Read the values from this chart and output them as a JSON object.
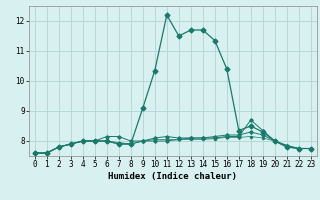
{
  "x": [
    0,
    1,
    2,
    3,
    4,
    5,
    6,
    7,
    8,
    9,
    10,
    11,
    12,
    13,
    14,
    15,
    16,
    17,
    18,
    19,
    20,
    21,
    22,
    23
  ],
  "line1": [
    7.6,
    7.6,
    7.8,
    7.9,
    8.0,
    8.0,
    8.0,
    7.9,
    7.9,
    9.1,
    10.35,
    12.2,
    11.5,
    11.7,
    11.7,
    11.35,
    10.4,
    8.35,
    8.5,
    8.3,
    8.0,
    7.8,
    7.75,
    7.75
  ],
  "line2": [
    7.6,
    7.6,
    7.8,
    7.9,
    8.0,
    8.0,
    8.0,
    7.9,
    7.9,
    8.0,
    8.1,
    8.15,
    8.1,
    8.1,
    8.1,
    8.15,
    8.2,
    8.2,
    8.3,
    8.2,
    8.0,
    7.85,
    7.75,
    7.75
  ],
  "line3": [
    7.6,
    7.6,
    7.8,
    7.9,
    8.0,
    8.0,
    8.15,
    8.15,
    8.0,
    8.0,
    8.0,
    8.0,
    8.05,
    8.1,
    8.1,
    8.1,
    8.15,
    8.15,
    8.7,
    8.35,
    8.0,
    7.85,
    7.75,
    7.75
  ],
  "line4": [
    7.6,
    7.6,
    7.8,
    7.9,
    8.0,
    8.0,
    8.0,
    7.95,
    7.9,
    8.0,
    8.05,
    8.05,
    8.05,
    8.05,
    8.05,
    8.08,
    8.12,
    8.12,
    8.15,
    8.1,
    8.0,
    7.8,
    7.75,
    7.75
  ],
  "line_color": "#1a7a6a",
  "bg_color": "#d8f0f0",
  "grid_color": "#b8d8d8",
  "xlabel": "Humidex (Indice chaleur)",
  "ylim": [
    7.5,
    12.5
  ],
  "xlim": [
    -0.5,
    23.5
  ],
  "yticks": [
    8,
    9,
    10,
    11,
    12
  ],
  "xticks": [
    0,
    1,
    2,
    3,
    4,
    5,
    6,
    7,
    8,
    9,
    10,
    11,
    12,
    13,
    14,
    15,
    16,
    17,
    18,
    19,
    20,
    21,
    22,
    23
  ]
}
